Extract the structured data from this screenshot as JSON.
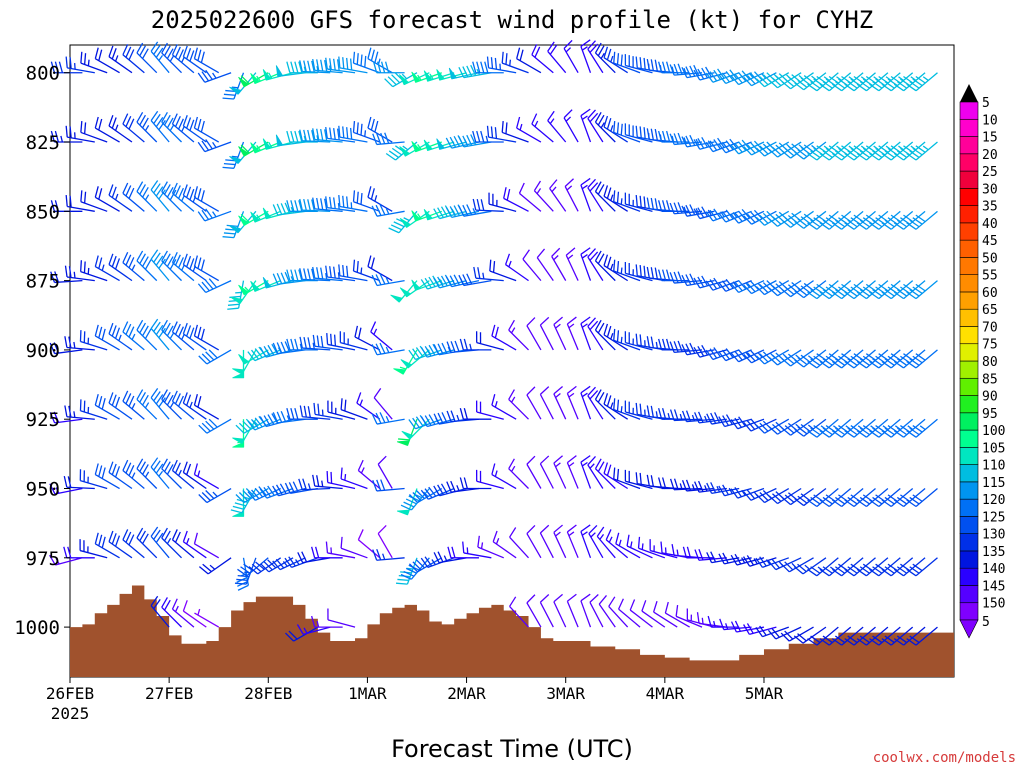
{
  "chart_data": {
    "type": "wind-barb-profile",
    "title": "2025022600 GFS forecast wind profile (kt) for CYHZ",
    "xlabel": "Forecast Time (UTC)",
    "ylabel": "",
    "credit": "coolwx.com/models",
    "y_axis": {
      "reversed": true,
      "ylim": [
        790,
        1018
      ],
      "ticks": [
        800,
        825,
        850,
        875,
        900,
        925,
        950,
        975,
        1000
      ]
    },
    "x_axis": {
      "xlim_hours": [
        0,
        214
      ],
      "ticks": [
        {
          "hour": 0,
          "label": "26FEB",
          "sublabel": "2025"
        },
        {
          "hour": 24,
          "label": "27FEB",
          "sublabel": ""
        },
        {
          "hour": 48,
          "label": "28FEB",
          "sublabel": ""
        },
        {
          "hour": 72,
          "label": "1MAR",
          "sublabel": ""
        },
        {
          "hour": 96,
          "label": "2MAR",
          "sublabel": ""
        },
        {
          "hour": 120,
          "label": "3MAR",
          "sublabel": ""
        },
        {
          "hour": 144,
          "label": "4MAR",
          "sublabel": ""
        },
        {
          "hour": 168,
          "label": "5MAR",
          "sublabel": ""
        }
      ]
    },
    "colorbar": {
      "levels": [
        5,
        10,
        15,
        20,
        25,
        30,
        35,
        40,
        45,
        50,
        55,
        60,
        65,
        70,
        75,
        80,
        85,
        90,
        95,
        100,
        105,
        110,
        115,
        120,
        125,
        130,
        135,
        140,
        145,
        150
      ],
      "colors": [
        "#7f00ff",
        "#5500ff",
        "#2a00ff",
        "#0015e0",
        "#0030e8",
        "#0050f0",
        "#0070f5",
        "#0095f0",
        "#00bde0",
        "#00e6c0",
        "#00ff90",
        "#00f060",
        "#20f020",
        "#60f000",
        "#a0f000",
        "#e0f000",
        "#ffe000",
        "#ffc000",
        "#ffa000",
        "#ff8c00",
        "#ff7800",
        "#ff6000",
        "#ff4000",
        "#ff2000",
        "#ff0000",
        "#f0003c",
        "#ff0066",
        "#ff0099",
        "#ff00cc",
        "#ee00ee"
      ],
      "top_color": "#000000"
    },
    "surface_pressure": {
      "hours": [
        0,
        3,
        6,
        9,
        12,
        15,
        18,
        21,
        24,
        27,
        30,
        33,
        36,
        39,
        42,
        45,
        48,
        51,
        54,
        57,
        60,
        63,
        66,
        69,
        72,
        75,
        78,
        81,
        84,
        87,
        90,
        93,
        96,
        99,
        102,
        105,
        108,
        111,
        114,
        117,
        120,
        126,
        132,
        138,
        144,
        150,
        156,
        162,
        168,
        174,
        180,
        186,
        192
      ],
      "values": [
        1000,
        999,
        995,
        992,
        988,
        985,
        990,
        996,
        1003,
        1006,
        1006,
        1005,
        1000,
        994,
        991,
        989,
        989,
        989,
        992,
        997,
        1002,
        1005,
        1005,
        1004,
        999,
        995,
        993,
        992,
        994,
        998,
        999,
        997,
        995,
        993,
        992,
        994,
        996,
        1000,
        1004,
        1005,
        1005,
        1007,
        1008,
        1010,
        1011,
        1012,
        1012,
        1010,
        1008,
        1006,
        1004,
        1002,
        1002
      ]
    },
    "levels": [
      800,
      825,
      850,
      875,
      900,
      925,
      950,
      975,
      1000
    ],
    "wind_profiles": [
      {
        "hour": 0,
        "dir": [
          260,
          260,
          260,
          255,
          250,
          250,
          245,
          240,
          230
        ],
        "speed": [
          30,
          25,
          22,
          20,
          18,
          15,
          12,
          10,
          8
        ]
      },
      {
        "hour": 12,
        "dir": [
          300,
          300,
          300,
          300,
          300,
          300,
          300,
          300,
          300
        ],
        "speed": [
          20,
          20,
          22,
          25,
          30,
          30,
          30,
          28,
          20
        ]
      },
      {
        "hour": 24,
        "dir": [
          320,
          320,
          320,
          320,
          320,
          320,
          320,
          320,
          320
        ],
        "speed": [
          35,
          38,
          40,
          42,
          40,
          38,
          35,
          30,
          22
        ]
      },
      {
        "hour": 36,
        "dir": [
          300,
          300,
          300,
          300,
          300,
          300,
          300,
          300,
          300
        ],
        "speed": [
          30,
          30,
          30,
          30,
          28,
          22,
          15,
          10,
          5
        ]
      },
      {
        "hour": 42,
        "dir": [
          200,
          200,
          200,
          190,
          180,
          180,
          180,
          170,
          180
        ],
        "speed": [
          35,
          35,
          40,
          45,
          50,
          55,
          50,
          35,
          20
        ]
      },
      {
        "hour": 48,
        "dir": [
          240,
          240,
          240,
          240,
          240,
          240,
          240,
          230,
          220
        ],
        "speed": [
          60,
          60,
          58,
          55,
          50,
          45,
          40,
          30,
          20
        ]
      },
      {
        "hour": 60,
        "dir": [
          270,
          270,
          270,
          270,
          270,
          270,
          260,
          250,
          240
        ],
        "speed": [
          45,
          45,
          42,
          40,
          35,
          32,
          30,
          25,
          20
        ]
      },
      {
        "hour": 72,
        "dir": [
          280,
          280,
          280,
          280,
          285,
          290,
          290,
          290,
          300
        ],
        "speed": [
          40,
          38,
          35,
          30,
          25,
          20,
          15,
          10,
          8
        ]
      },
      {
        "hour": 78,
        "dir": [
          300,
          300,
          300,
          300,
          310,
          320,
          330,
          330,
          330
        ],
        "speed": [
          35,
          30,
          25,
          20,
          15,
          12,
          10,
          8,
          5
        ]
      },
      {
        "hour": 84,
        "dir": [
          240,
          230,
          220,
          220,
          210,
          200,
          200,
          200,
          200
        ],
        "speed": [
          45,
          45,
          45,
          50,
          55,
          60,
          50,
          45,
          35
        ]
      },
      {
        "hour": 90,
        "dir": [
          250,
          250,
          250,
          250,
          250,
          250,
          240,
          240,
          230
        ],
        "speed": [
          55,
          55,
          55,
          50,
          45,
          40,
          35,
          30,
          25
        ]
      },
      {
        "hour": 102,
        "dir": [
          260,
          260,
          260,
          260,
          270,
          270,
          270,
          280,
          280
        ],
        "speed": [
          45,
          40,
          35,
          30,
          25,
          22,
          20,
          15,
          10
        ]
      },
      {
        "hour": 114,
        "dir": [
          300,
          300,
          310,
          320,
          330,
          330,
          330,
          330,
          330
        ],
        "speed": [
          20,
          15,
          12,
          10,
          10,
          10,
          10,
          10,
          10
        ]
      },
      {
        "hour": 126,
        "dir": [
          340,
          340,
          340,
          340,
          340,
          340,
          340,
          340,
          340
        ],
        "speed": [
          15,
          15,
          15,
          15,
          15,
          15,
          15,
          15,
          12
        ]
      },
      {
        "hour": 138,
        "dir": [
          290,
          290,
          290,
          290,
          290,
          290,
          290,
          300,
          310
        ],
        "speed": [
          30,
          30,
          25,
          25,
          25,
          25,
          20,
          15,
          10
        ]
      },
      {
        "hour": 150,
        "dir": [
          270,
          270,
          270,
          270,
          270,
          270,
          270,
          280,
          300
        ],
        "speed": [
          35,
          35,
          32,
          30,
          28,
          25,
          22,
          15,
          10
        ]
      },
      {
        "hour": 162,
        "dir": [
          250,
          250,
          250,
          250,
          250,
          260,
          260,
          260,
          270
        ],
        "speed": [
          40,
          38,
          35,
          32,
          30,
          28,
          25,
          20,
          15
        ]
      },
      {
        "hour": 174,
        "dir": [
          240,
          240,
          240,
          240,
          240,
          240,
          240,
          250,
          250
        ],
        "speed": [
          45,
          42,
          40,
          38,
          35,
          30,
          28,
          25,
          20
        ]
      },
      {
        "hour": 186,
        "dir": [
          230,
          230,
          230,
          230,
          230,
          230,
          230,
          230,
          230
        ],
        "speed": [
          45,
          45,
          42,
          40,
          38,
          35,
          30,
          25,
          20
        ]
      },
      {
        "hour": 192,
        "dir": [
          230,
          230,
          230,
          230,
          230,
          230,
          230,
          230,
          230
        ],
        "speed": [
          45,
          45,
          42,
          40,
          38,
          35,
          30,
          28,
          22
        ]
      }
    ]
  }
}
